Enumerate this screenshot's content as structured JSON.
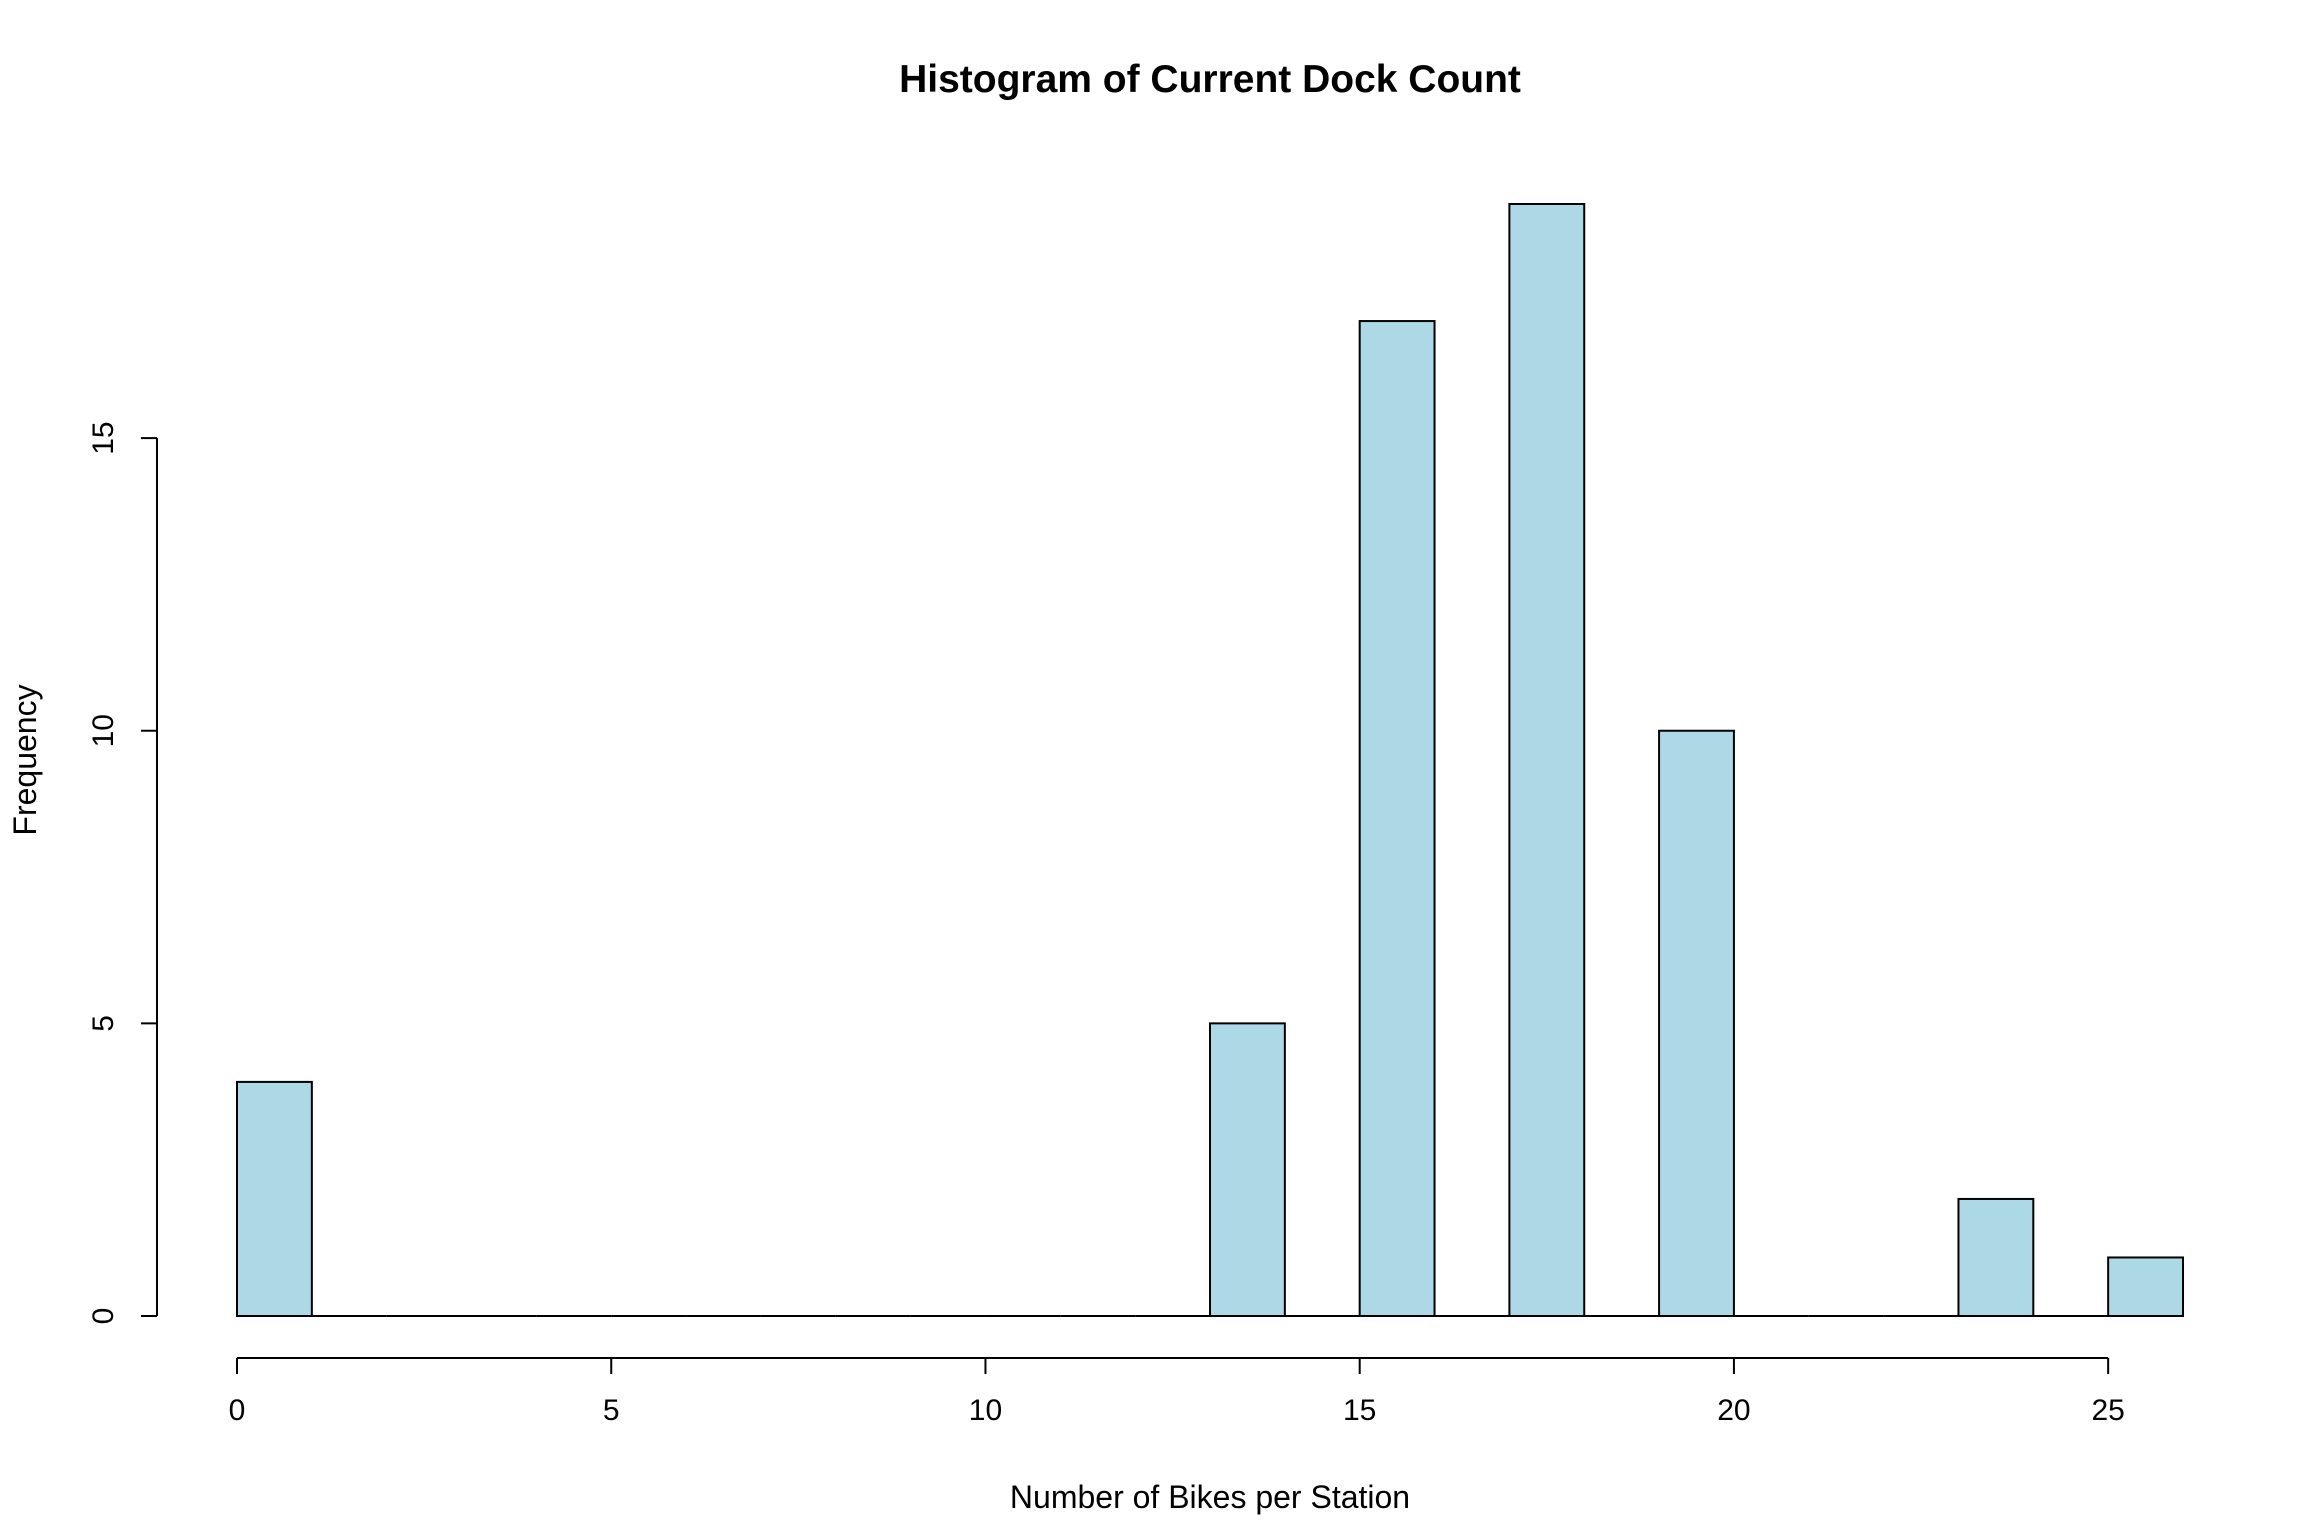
{
  "chart_data": {
    "type": "bar",
    "title": "Histogram of Current Dock Count",
    "xlabel": "Number of Bikes per Station",
    "ylabel": "Frequency",
    "bins": [
      {
        "start": 0,
        "end": 1,
        "count": 4
      },
      {
        "start": 1,
        "end": 2,
        "count": 0
      },
      {
        "start": 2,
        "end": 3,
        "count": 0
      },
      {
        "start": 3,
        "end": 4,
        "count": 0
      },
      {
        "start": 4,
        "end": 5,
        "count": 0
      },
      {
        "start": 5,
        "end": 6,
        "count": 0
      },
      {
        "start": 6,
        "end": 7,
        "count": 0
      },
      {
        "start": 7,
        "end": 8,
        "count": 0
      },
      {
        "start": 8,
        "end": 9,
        "count": 0
      },
      {
        "start": 9,
        "end": 10,
        "count": 0
      },
      {
        "start": 10,
        "end": 11,
        "count": 0
      },
      {
        "start": 11,
        "end": 12,
        "count": 0
      },
      {
        "start": 12,
        "end": 13,
        "count": 0
      },
      {
        "start": 13,
        "end": 14,
        "count": 5
      },
      {
        "start": 14,
        "end": 15,
        "count": 0
      },
      {
        "start": 15,
        "end": 16,
        "count": 17
      },
      {
        "start": 16,
        "end": 17,
        "count": 0
      },
      {
        "start": 17,
        "end": 18,
        "count": 19
      },
      {
        "start": 18,
        "end": 19,
        "count": 0
      },
      {
        "start": 19,
        "end": 20,
        "count": 10
      },
      {
        "start": 20,
        "end": 21,
        "count": 0
      },
      {
        "start": 21,
        "end": 22,
        "count": 0
      },
      {
        "start": 22,
        "end": 23,
        "count": 0
      },
      {
        "start": 23,
        "end": 24,
        "count": 2
      },
      {
        "start": 24,
        "end": 25,
        "count": 0
      },
      {
        "start": 25,
        "end": 26,
        "count": 1
      }
    ],
    "xlim": [
      0,
      26
    ],
    "ylim": [
      0,
      19
    ],
    "x_ticks": [
      0,
      5,
      10,
      15,
      20,
      25
    ],
    "y_ticks": [
      0,
      5,
      10,
      15
    ],
    "bar_color": "#add8e6",
    "grid": false
  }
}
